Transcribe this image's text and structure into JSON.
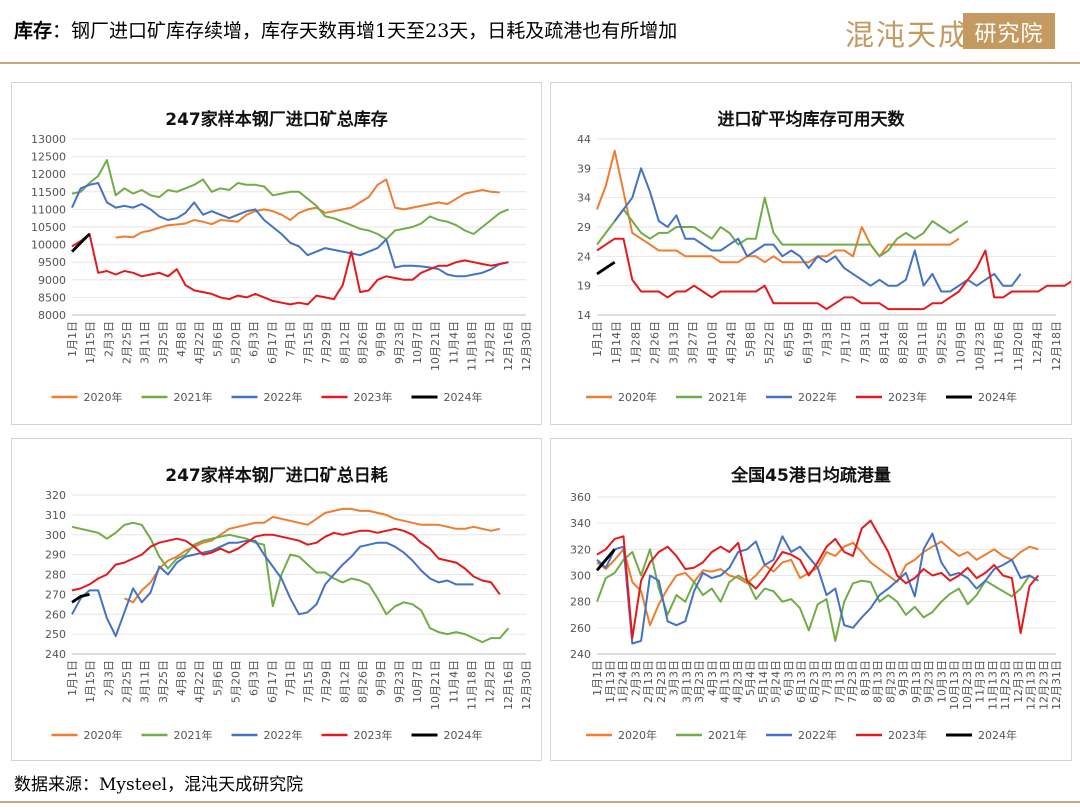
{
  "header": {
    "label": "库存",
    "colon": "：",
    "title": "钢厂进口矿库存续增，库存天数再增1天至23天，日耗及疏港也有所增加",
    "logo_text": "混沌天成",
    "logo_box_text": "研究院"
  },
  "footer": {
    "source": "数据来源：Mysteel，混沌天成研究院"
  },
  "colors": {
    "2020年": "#ed7d31",
    "2021年": "#70ad47",
    "2022年": "#4472c4",
    "2023年": "#e31a1c",
    "2024年": "#000000"
  },
  "chart_data": [
    {
      "id": "inventory",
      "type": "line",
      "title": "247家样本钢厂进口矿总库存",
      "ylim": [
        8000,
        13000
      ],
      "yticks": [
        8000,
        8500,
        9000,
        9500,
        10000,
        10500,
        11000,
        11500,
        12000,
        12500,
        13000
      ],
      "xticks": [
        "1月1日",
        "1月15日",
        "2月3日",
        "2月25日",
        "3月11日",
        "3月25日",
        "4月8日",
        "4月22日",
        "5月6日",
        "5月20日",
        "6月3日",
        "6月17日",
        "7月1日",
        "7月15日",
        "7月29日",
        "8月12日",
        "8月26日",
        "9月9日",
        "9月23日",
        "10月7日",
        "10月21日",
        "11月4日",
        "11月18日",
        "12月2日",
        "12月16日",
        "12月30日"
      ],
      "x_max": 52,
      "legend": "bottom",
      "series": [
        {
          "name": "2020年",
          "start": 5,
          "values": [
            10200,
            10230,
            10210,
            10350,
            10400,
            10480,
            10550,
            10570,
            10600,
            10700,
            10650,
            10580,
            10700,
            10680,
            10650,
            10850,
            10950,
            11000,
            10950,
            10850,
            10700,
            10900,
            11000,
            11050,
            10900,
            10950,
            11000,
            11050,
            11200,
            11350,
            11700,
            11850,
            11050,
            11000,
            11050,
            11100,
            11150,
            11200,
            11150,
            11300,
            11450,
            11500,
            11550,
            11500,
            11480
          ]
        },
        {
          "name": "2021年",
          "start": 0,
          "values": [
            11450,
            11500,
            11750,
            11950,
            12400,
            11400,
            11600,
            11450,
            11550,
            11400,
            11350,
            11550,
            11500,
            11600,
            11700,
            11850,
            11500,
            11600,
            11550,
            11750,
            11700,
            11700,
            11650,
            11400,
            11450,
            11500,
            11500,
            11300,
            11100,
            10800,
            10750,
            10650,
            10550,
            10450,
            10400,
            10300,
            10150,
            10400,
            10450,
            10500,
            10600,
            10800,
            10700,
            10650,
            10550,
            10400,
            10300,
            10500,
            10700,
            10900,
            11000
          ]
        },
        {
          "name": "2022年",
          "start": 0,
          "values": [
            11050,
            11600,
            11700,
            11750,
            11200,
            11050,
            11100,
            11050,
            11150,
            11000,
            10800,
            10700,
            10750,
            10900,
            11200,
            10850,
            10950,
            10850,
            10750,
            10850,
            10950,
            11000,
            10700,
            10500,
            10300,
            10050,
            9950,
            9700,
            9800,
            9900,
            9850,
            9800,
            9750,
            9700,
            9800,
            9900,
            10150,
            9350,
            9400,
            9400,
            9380,
            9350,
            9300,
            9150,
            9100,
            9100,
            9150,
            9200,
            9300,
            9450,
            9500
          ]
        },
        {
          "name": "2023年",
          "start": 0,
          "values": [
            9950,
            10100,
            10300,
            9200,
            9250,
            9150,
            9250,
            9200,
            9100,
            9150,
            9200,
            9100,
            9300,
            8850,
            8700,
            8650,
            8600,
            8500,
            8450,
            8550,
            8500,
            8600,
            8500,
            8400,
            8350,
            8300,
            8350,
            8300,
            8550,
            8500,
            8450,
            8850,
            9800,
            8650,
            8700,
            9000,
            9100,
            9050,
            9000,
            9000,
            9200,
            9300,
            9400,
            9400,
            9500,
            9550,
            9500,
            9450,
            9400,
            9450,
            9500
          ]
        },
        {
          "name": "2024年",
          "start": 0,
          "values": [
            9800,
            10050,
            10300
          ]
        }
      ]
    },
    {
      "id": "days",
      "type": "line",
      "title": "进口矿平均库存可用天数",
      "ylim": [
        14,
        44
      ],
      "yticks": [
        14,
        19,
        24,
        29,
        34,
        39,
        44
      ],
      "xticks": [
        "1月1日",
        "1月14日",
        "1月28日",
        "2月26日",
        "3月13日",
        "3月27日",
        "4月10日",
        "4月24日",
        "5月8日",
        "5月22日",
        "6月5日",
        "6月19日",
        "7月3日",
        "7月17日",
        "7月31日",
        "8月14日",
        "8月28日",
        "9月11日",
        "9月25日",
        "10月9日",
        "10月23日",
        "11月6日",
        "11月20日",
        "12月4日",
        "12月18日"
      ],
      "x_max": 52,
      "legend": "bottom",
      "series": [
        {
          "name": "2020年",
          "start": 0,
          "values": [
            32,
            36,
            42,
            35,
            28,
            27,
            26,
            25,
            25,
            25,
            24,
            24,
            24,
            24,
            23,
            23,
            23,
            24,
            24,
            23,
            24,
            23,
            23,
            23,
            23,
            24,
            24,
            25,
            25,
            24,
            29,
            26,
            24,
            26,
            26,
            26,
            26,
            26,
            26,
            26,
            26,
            27
          ]
        },
        {
          "name": "2021年",
          "start": 0,
          "values": [
            26,
            28,
            30,
            32,
            30,
            28,
            27,
            28,
            28,
            29,
            29,
            29,
            28,
            27,
            29,
            28,
            26,
            27,
            27,
            34,
            28,
            26,
            26,
            26,
            26,
            26,
            26,
            26,
            26,
            26,
            26,
            26,
            24,
            25,
            27,
            28,
            27,
            28,
            30,
            29,
            28,
            29,
            30
          ]
        },
        {
          "name": "2022年",
          "start": 2,
          "values": [
            30,
            32,
            34,
            39,
            35,
            30,
            29,
            31,
            27,
            27,
            26,
            25,
            25,
            26,
            27,
            24,
            25,
            26,
            26,
            24,
            25,
            24,
            22,
            24,
            23,
            24,
            22,
            21,
            20,
            19,
            20,
            19,
            19,
            20,
            25,
            19,
            21,
            18,
            18,
            19,
            20,
            19,
            20,
            21,
            19,
            19,
            21
          ]
        },
        {
          "name": "2023年",
          "start": 0,
          "values": [
            25,
            26,
            27,
            27,
            20,
            18,
            18,
            18,
            17,
            18,
            18,
            19,
            18,
            17,
            18,
            18,
            18,
            18,
            18,
            19,
            16,
            16,
            16,
            16,
            16,
            16,
            15,
            16,
            17,
            17,
            16,
            16,
            16,
            15,
            15,
            15,
            15,
            15,
            16,
            16,
            17,
            18,
            20,
            22,
            25,
            17,
            17,
            18,
            18,
            18,
            18,
            19,
            19,
            19,
            20,
            20,
            21
          ]
        },
        {
          "name": "2024年",
          "start": 0,
          "values": [
            21,
            22,
            23
          ]
        }
      ]
    },
    {
      "id": "consumption",
      "type": "line",
      "title": "247家样本钢厂进口矿总日耗",
      "ylim": [
        240,
        320
      ],
      "yticks": [
        240,
        250,
        260,
        270,
        280,
        290,
        300,
        310,
        320
      ],
      "xticks": [
        "1月1日",
        "1月15日",
        "2月3日",
        "2月25日",
        "3月11日",
        "3月25日",
        "4月8日",
        "4月22日",
        "5月6日",
        "5月20日",
        "6月3日",
        "6月17日",
        "7月1日",
        "7月15日",
        "7月29日",
        "8月12日",
        "8月26日",
        "9月9日",
        "9月23日",
        "10月7日",
        "10月21日",
        "11月4日",
        "11月18日",
        "12月2日",
        "12月16日",
        "12月30日"
      ],
      "x_max": 52,
      "legend": "bottom",
      "series": [
        {
          "name": "2020年",
          "start": 6,
          "values": [
            268,
            266,
            272,
            276,
            283,
            287,
            289,
            292,
            294,
            296,
            297,
            300,
            303,
            304,
            305,
            306,
            306,
            309,
            308,
            307,
            306,
            305,
            308,
            311,
            312,
            313,
            313,
            312,
            312,
            311,
            310,
            308,
            307,
            306,
            305,
            305,
            305,
            304,
            303,
            303,
            304,
            303,
            302,
            303
          ]
        },
        {
          "name": "2021年",
          "start": 0,
          "values": [
            304,
            303,
            302,
            301,
            298,
            301,
            305,
            306,
            305,
            298,
            289,
            283,
            288,
            290,
            295,
            297,
            298,
            299,
            300,
            299,
            298,
            296,
            295,
            264,
            280,
            290,
            289,
            285,
            281,
            281,
            278,
            276,
            278,
            277,
            275,
            268,
            260,
            264,
            266,
            265,
            262,
            253,
            251,
            250,
            251,
            250,
            248,
            246,
            248,
            248,
            253
          ]
        },
        {
          "name": "2022年",
          "start": 0,
          "values": [
            260,
            268,
            272,
            272,
            258,
            249,
            261,
            273,
            266,
            271,
            284,
            280,
            286,
            289,
            290,
            291,
            292,
            294,
            296,
            296,
            297,
            297,
            290,
            284,
            278,
            268,
            260,
            261,
            265,
            275,
            280,
            285,
            289,
            294,
            295,
            296,
            296,
            294,
            291,
            287,
            282,
            278,
            276,
            277,
            275,
            275,
            275
          ]
        },
        {
          "name": "2023年",
          "start": 0,
          "values": [
            272,
            273,
            275,
            278,
            280,
            285,
            286,
            288,
            290,
            294,
            296,
            297,
            298,
            297,
            294,
            290,
            291,
            293,
            291,
            293,
            296,
            299,
            300,
            300,
            299,
            298,
            297,
            295,
            296,
            299,
            301,
            300,
            301,
            302,
            302,
            301,
            302,
            303,
            302,
            300,
            296,
            293,
            288,
            287,
            286,
            283,
            279,
            277,
            276,
            270
          ]
        },
        {
          "name": "2024年",
          "start": 0,
          "values": [
            266,
            269,
            270
          ]
        }
      ]
    },
    {
      "id": "port",
      "type": "line",
      "title": "全国45港日均疏港量",
      "ylim": [
        240,
        360
      ],
      "yticks": [
        240,
        260,
        280,
        300,
        320,
        340,
        360
      ],
      "xticks": [
        "1月1日",
        "1月13日",
        "1月24日",
        "2月3日",
        "2月13日",
        "2月23日",
        "3月3日",
        "3月13日",
        "3月23日",
        "4月3日",
        "4月13日",
        "4月23日",
        "5月4日",
        "5月14日",
        "5月24日",
        "6月3日",
        "6月13日",
        "6月23日",
        "7月3日",
        "7月13日",
        "7月23日",
        "8月3日",
        "8月13日",
        "8月23日",
        "9月3日",
        "9月13日",
        "9月23日",
        "10月3日",
        "10月13日",
        "10月23日",
        "11月3日",
        "11月13日",
        "11月23日",
        "12月3日",
        "12月13日",
        "12月23日",
        "12月31日"
      ],
      "x_max": 52,
      "legend": "bottom",
      "series": [
        {
          "name": "2020年",
          "start": 0,
          "values": [
            310,
            305,
            312,
            320,
            295,
            288,
            262,
            278,
            290,
            300,
            302,
            295,
            304,
            303,
            305,
            300,
            298,
            294,
            300,
            308,
            303,
            310,
            312,
            298,
            302,
            306,
            318,
            315,
            322,
            325,
            318,
            310,
            305,
            300,
            295,
            308,
            312,
            318,
            322,
            326,
            320,
            315,
            318,
            312,
            316,
            320,
            315,
            312,
            318,
            322,
            320
          ]
        },
        {
          "name": "2021年",
          "start": 0,
          "values": [
            280,
            298,
            302,
            312,
            318,
            300,
            320,
            290,
            270,
            285,
            280,
            295,
            285,
            290,
            280,
            295,
            300,
            296,
            282,
            290,
            288,
            280,
            282,
            275,
            258,
            278,
            282,
            250,
            280,
            294,
            296,
            295,
            280,
            285,
            280,
            270,
            276,
            268,
            272,
            280,
            286,
            290,
            278,
            285,
            296,
            292,
            288,
            284,
            290,
            300,
            296
          ]
        },
        {
          "name": "2022年",
          "start": 0,
          "values": [
            312,
            306,
            320,
            322,
            248,
            250,
            300,
            296,
            265,
            262,
            265,
            288,
            302,
            298,
            300,
            306,
            318,
            320,
            326,
            308,
            312,
            330,
            318,
            322,
            314,
            306,
            285,
            290,
            262,
            260,
            268,
            275,
            285,
            290,
            296,
            302,
            284,
            320,
            332,
            310,
            300,
            302,
            298,
            290,
            296,
            305,
            308,
            312,
            298,
            300,
            296
          ]
        },
        {
          "name": "2023年",
          "start": 0,
          "values": [
            316,
            320,
            328,
            330,
            252,
            296,
            310,
            318,
            322,
            315,
            305,
            306,
            310,
            318,
            322,
            318,
            325,
            296,
            290,
            298,
            308,
            318,
            316,
            312,
            300,
            310,
            322,
            328,
            318,
            315,
            336,
            342,
            330,
            318,
            300,
            294,
            298,
            305,
            300,
            302,
            296,
            300,
            306,
            298,
            302,
            308,
            300,
            298,
            256,
            292,
            300
          ]
        },
        {
          "name": "2024年",
          "start": 0,
          "values": [
            304,
            312,
            320
          ]
        }
      ]
    }
  ]
}
